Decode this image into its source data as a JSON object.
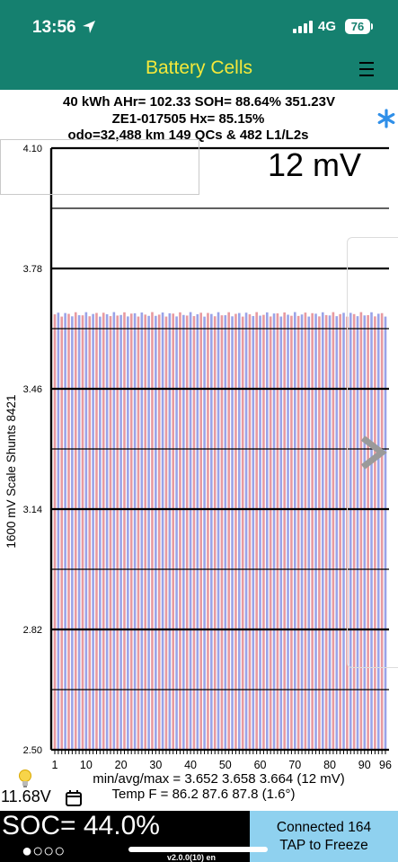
{
  "status_bar": {
    "time": "13:56",
    "network": "4G",
    "battery": "76"
  },
  "nav": {
    "title": "Battery Cells"
  },
  "header": {
    "line1": "40 kWh  AHr= 102.33  SOH= 88.64%   351.23V",
    "line2": "ZE1-017505   Hx= 85.15%",
    "line3": "odo=32,488 km 149 QCs & 482 L1/L2s"
  },
  "chart_data": {
    "type": "bar",
    "title": "",
    "xlabel": "",
    "ylabel": "1600 mV Scale   Shunts 8421",
    "ylim": [
      2.5,
      4.1
    ],
    "y_ticks": [
      "4.10",
      "3.78",
      "3.46",
      "3.14",
      "2.82",
      "2.50"
    ],
    "x_ticks": [
      "1",
      "10",
      "20",
      "30",
      "40",
      "50",
      "60",
      "70",
      "80",
      "90",
      "96"
    ],
    "cell_count": 96,
    "series_colors": [
      "#e89aa0",
      "#9aa3e8"
    ],
    "min": 3.652,
    "avg": 3.658,
    "max": 3.664,
    "annotation": "12 mV",
    "grid": true
  },
  "stats": {
    "voltage_line": "min/avg/max = 3.652 3.658 3.664  (12 mV)",
    "temp_line": "Temp F = 86.2  87.6  87.8  (1.6°)"
  },
  "aux_voltage": "11.68V",
  "soc": "SOC= 44.0%",
  "page_dots": "●○○○",
  "connected": {
    "line1": "Connected 164",
    "line2": "TAP to Freeze"
  },
  "version": "v2.0.0(10) en",
  "icons": {
    "location": "location-arrow-icon",
    "menu": "menu-icon",
    "star": "asterisk-icon",
    "chevron": "chevron-right-icon",
    "bulb": "lightbulb-icon",
    "calendar": "calendar-icon"
  },
  "colors": {
    "header_bg": "#15806f",
    "title": "#f4e83a",
    "star": "#2f8fe8",
    "connected_bg": "#8fd1ef"
  }
}
